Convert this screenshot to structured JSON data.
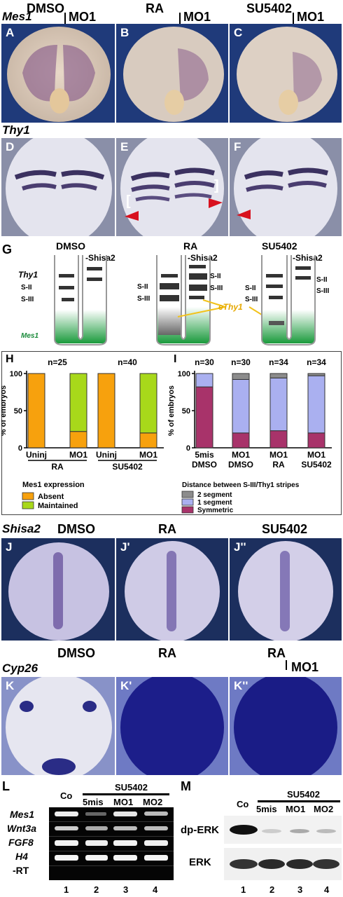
{
  "top": {
    "gene1": "Mes1",
    "conds": [
      "DMSO",
      "RA",
      "SU5402"
    ],
    "mo": "MO1",
    "panels_row1": [
      "A",
      "B",
      "C"
    ],
    "gene2": "Thy1",
    "panels_row2": [
      "D",
      "E",
      "F"
    ]
  },
  "schematic": {
    "panel": "G",
    "conds": [
      "DMSO",
      "RA",
      "SU5402"
    ],
    "shisa": "-Shisa2",
    "thy1": "Thy1",
    "s2": "S-II",
    "s3": "S-III",
    "mes1": "Mes1",
    "ethy1": "eThy1"
  },
  "chart_data": [
    {
      "type": "bar",
      "panel": "H",
      "ylabel": "% of embryos",
      "ylim": [
        0,
        100
      ],
      "yticks": [
        "0",
        "50",
        "100"
      ],
      "categories": [
        "Uninj",
        "MO1",
        "Uninj",
        "MO1"
      ],
      "groups": [
        "RA",
        "SU5402"
      ],
      "n_labels": [
        "n=25",
        "n=40"
      ],
      "series": [
        {
          "name": "Absent",
          "color": "#f7a10d",
          "values": [
            100,
            22,
            100,
            20
          ]
        },
        {
          "name": "Maintained",
          "color": "#a8d81a",
          "values": [
            0,
            78,
            0,
            80
          ]
        }
      ],
      "legend_title": "Mes1 expression"
    },
    {
      "type": "bar",
      "panel": "I",
      "ylabel": "% of embryos",
      "ylim": [
        0,
        100
      ],
      "yticks": [
        "0",
        "50",
        "100"
      ],
      "categories": [
        "5mis\nDMSO",
        "MO1\nDMSO",
        "MO1\nRA",
        "MO1\nSU5402"
      ],
      "cat_top": [
        "5mis",
        "MO1",
        "MO1",
        "MO1"
      ],
      "cat_bottom": [
        "DMSO",
        "DMSO",
        "RA",
        "SU5402"
      ],
      "n_labels": [
        "n=30",
        "n=30",
        "n=34",
        "n=34"
      ],
      "series": [
        {
          "name": "Symmetric",
          "color": "#a8336a",
          "values": [
            82,
            20,
            23,
            20
          ]
        },
        {
          "name": "1 segment",
          "color": "#aab0f0",
          "values": [
            18,
            72,
            71,
            77
          ]
        },
        {
          "name": "2 segment",
          "color": "#8c8c8c",
          "values": [
            0,
            8,
            6,
            3
          ]
        }
      ],
      "legend_title": "Distance between  S-III/Thy1 stripes",
      "legend_order": [
        "2 segment",
        "1 segment",
        "Symmetric"
      ]
    }
  ],
  "shisa": {
    "gene": "Shisa2",
    "conds": [
      "DMSO",
      "RA",
      "SU5402"
    ],
    "panels": [
      "J",
      "J'",
      "J''"
    ]
  },
  "cyp": {
    "gene": "Cyp26",
    "conds": [
      "DMSO",
      "RA",
      "RA"
    ],
    "mo": "MO1",
    "panels": [
      "K",
      "K'",
      "K''"
    ]
  },
  "gelL": {
    "panel": "L",
    "co": "Co",
    "su": "SU5402",
    "lanes": [
      "5mis",
      "MO1",
      "MO2"
    ],
    "rows": [
      "Mes1",
      "Wnt3a",
      "FGF8",
      "H4",
      "-RT"
    ],
    "nums": [
      "1",
      "2",
      "3",
      "4"
    ]
  },
  "gelM": {
    "panel": "M",
    "co": "Co",
    "su": "SU5402",
    "lanes": [
      "5mis",
      "MO1",
      "MO2"
    ],
    "rows": [
      "dp-ERK",
      "ERK"
    ],
    "nums": [
      "1",
      "2",
      "3",
      "4"
    ]
  }
}
